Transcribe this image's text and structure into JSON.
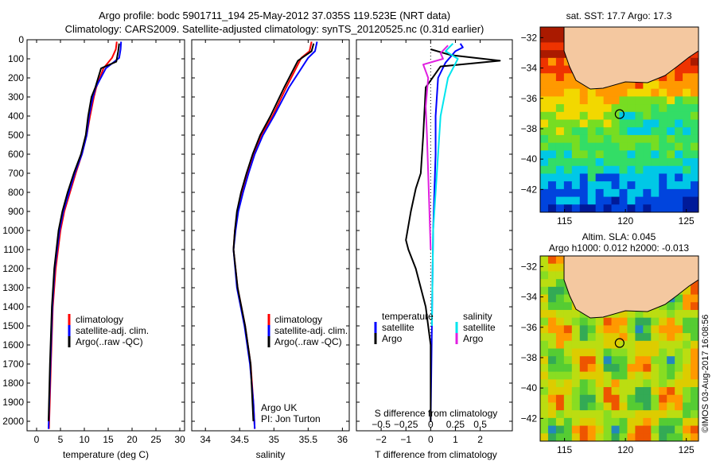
{
  "header": {
    "title_line1": "Argo profile: bodc 5901711_194 25-May-2012 37.035S 119.523E (NRT data)",
    "title_line2": "Climatology: CARS2009. Satellite-adjusted climatology: synTS_20120525.nc (0.31d earlier)"
  },
  "credit": "©IMOS 03-Aug-2017 16:08:56",
  "chart_data": [
    {
      "id": "temperature",
      "type": "line",
      "xlabel": "temperature (deg C)",
      "ylabel": "",
      "xlim": [
        -2,
        31
      ],
      "ylim": [
        2050,
        0
      ],
      "xticks": [
        0,
        5,
        10,
        15,
        20,
        25,
        30
      ],
      "yticks": [
        0,
        100,
        200,
        300,
        400,
        500,
        600,
        700,
        800,
        900,
        1000,
        1100,
        1200,
        1300,
        1400,
        1500,
        1600,
        1700,
        1800,
        1900,
        2000
      ],
      "legend": [
        "climatology",
        "satellite-adj. clim.",
        "Argo(..raw -QC)"
      ],
      "legend_colors": [
        "#ff0000",
        "#0000ff",
        "#000000"
      ],
      "series": [
        {
          "name": "climatology",
          "color": "#ff0000",
          "x": [
            16.8,
            16.6,
            15.8,
            14.0,
            12.5,
            12.0,
            11.2,
            10.5,
            9.5,
            8.2,
            7.0,
            5.8,
            5.0,
            4.0,
            3.4,
            3.0,
            2.6
          ],
          "y": [
            10,
            50,
            95,
            150,
            250,
            300,
            400,
            500,
            600,
            700,
            800,
            900,
            1000,
            1200,
            1400,
            1700,
            2040
          ]
        },
        {
          "name": "satellite-adj. clim.",
          "color": "#0000ff",
          "x": [
            17.7,
            17.6,
            17.3,
            14.5,
            12.4,
            11.8,
            11.0,
            10.5,
            9.5,
            8.0,
            6.8,
            5.6,
            4.8,
            3.8,
            3.3,
            2.9,
            2.5
          ],
          "y": [
            10,
            50,
            95,
            150,
            250,
            300,
            400,
            500,
            600,
            700,
            800,
            900,
            1000,
            1200,
            1400,
            1700,
            2040
          ]
        },
        {
          "name": "Argo(..raw -QC)",
          "color": "#000000",
          "x": [
            17.3,
            17.1,
            16.7,
            13.5,
            12.3,
            11.5,
            10.8,
            10.3,
            9.3,
            7.8,
            6.5,
            5.4,
            4.6,
            3.7,
            3.2,
            2.8,
            2.5
          ],
          "y": [
            20,
            60,
            115,
            150,
            250,
            300,
            400,
            500,
            600,
            700,
            800,
            900,
            1000,
            1200,
            1400,
            1700,
            2000
          ]
        }
      ]
    },
    {
      "id": "salinity",
      "type": "line",
      "xlabel": "salinity",
      "ylabel": "",
      "xlim": [
        33.8,
        36.1
      ],
      "ylim": [
        2050,
        0
      ],
      "xticks": [
        34,
        34.5,
        35,
        35.5,
        36
      ],
      "yticks": [
        0,
        100,
        200,
        300,
        400,
        500,
        600,
        700,
        800,
        900,
        1000,
        1100,
        1200,
        1300,
        1400,
        1500,
        1600,
        1700,
        1800,
        1900,
        2000
      ],
      "legend": [
        "climatology",
        "satellite-adj. clim.",
        "Argo(..raw -QC)"
      ],
      "legend_colors": [
        "#ff0000",
        "#0000ff",
        "#000000"
      ],
      "annotation": [
        "Argo UK",
        "PI: Jon Turton"
      ],
      "series": [
        {
          "name": "climatology",
          "color": "#ff0000",
          "x": [
            35.55,
            35.52,
            35.4,
            35.18,
            34.98,
            34.82,
            34.71,
            34.62,
            34.54,
            34.47,
            34.43,
            34.41,
            34.47,
            34.58,
            34.66,
            34.7,
            34.72
          ],
          "y": [
            10,
            60,
            95,
            250,
            400,
            500,
            600,
            700,
            800,
            900,
            1000,
            1100,
            1300,
            1500,
            1700,
            1900,
            2040
          ]
        },
        {
          "name": "satellite-adj. clim.",
          "color": "#0000ff",
          "x": [
            35.63,
            35.6,
            35.5,
            35.22,
            35.0,
            34.84,
            34.72,
            34.63,
            34.55,
            34.48,
            34.44,
            34.41,
            34.46,
            34.57,
            34.65,
            34.7,
            34.72
          ],
          "y": [
            10,
            60,
            95,
            250,
            400,
            500,
            600,
            700,
            800,
            900,
            1000,
            1100,
            1300,
            1500,
            1700,
            1900,
            2040
          ]
        },
        {
          "name": "Argo(..raw -QC)",
          "color": "#000000",
          "x": [
            35.58,
            35.55,
            35.35,
            35.15,
            34.95,
            34.8,
            34.69,
            34.6,
            34.52,
            34.46,
            34.43,
            34.41,
            34.47,
            34.58,
            34.66,
            34.7
          ],
          "y": [
            20,
            60,
            110,
            250,
            400,
            500,
            600,
            700,
            800,
            900,
            1000,
            1100,
            1300,
            1500,
            1700,
            2000
          ]
        }
      ]
    },
    {
      "id": "difference",
      "type": "line",
      "xlabel": "T difference from climatology",
      "xlabel_top": "S difference from climatology",
      "xlim": [
        -3,
        3.3
      ],
      "ylim": [
        2050,
        0
      ],
      "xticks": [
        -2,
        -1,
        0,
        1,
        2
      ],
      "xticks_top": [
        -0.5,
        -0.25,
        0,
        0.25,
        0.5
      ],
      "yticks": [
        0,
        100,
        200,
        300,
        400,
        500,
        600,
        700,
        800,
        900,
        1000,
        1100,
        1200,
        1300,
        1400,
        1500,
        1600,
        1700,
        1800,
        1900,
        2000
      ],
      "legend_temperature_title": "temperature",
      "legend_salinity_title": "salinity",
      "legend_temperature": [
        "satellite",
        "Argo"
      ],
      "legend_salinity": [
        "satellite",
        "Argo"
      ],
      "series": [
        {
          "name": "temperature satellite",
          "color": "#0000ff",
          "x": [
            1.2,
            1.3,
            1.0,
            0.6,
            0.3,
            0.2,
            0.2,
            0.1,
            0.05,
            0.0
          ],
          "y": [
            20,
            40,
            60,
            120,
            200,
            400,
            600,
            1000,
            1500,
            2000
          ]
        },
        {
          "name": "temperature Argo",
          "color": "#000000",
          "x": [
            0.0,
            0.8,
            2.8,
            0.4,
            -0.2,
            -0.3,
            -0.4,
            -0.6,
            -0.8,
            -1.0,
            -0.9,
            -0.6,
            -0.4,
            -0.2,
            0.0,
            0.0
          ],
          "y": [
            50,
            80,
            110,
            140,
            250,
            500,
            700,
            780,
            900,
            1050,
            1100,
            1200,
            1300,
            1400,
            1600,
            2000
          ]
        },
        {
          "name": "salinity satellite",
          "color": "#00e5ee",
          "x": [
            0.9,
            0.6,
            1.1,
            0.7,
            0.4,
            0.3,
            0.1,
            0.05
          ],
          "y": [
            20,
            60,
            100,
            200,
            400,
            600,
            1000,
            1500
          ]
        },
        {
          "name": "salinity Argo",
          "color": "#e020e0",
          "x": [
            0.7,
            0.4,
            0.5,
            -0.3,
            -0.1,
            -0.2,
            -0.15,
            -0.1,
            -0.05,
            0.0
          ],
          "y": [
            30,
            70,
            100,
            130,
            200,
            350,
            500,
            700,
            900,
            1100
          ]
        }
      ]
    }
  ],
  "maps": [
    {
      "id": "sst-map",
      "title": "sat. SST: 17.7 Argo: 17.3",
      "title_line2": "",
      "xlim": [
        113,
        126
      ],
      "ylim": [
        -43.5,
        -31.3
      ],
      "xticks": [
        115,
        120,
        125
      ],
      "yticks": [
        -32,
        -34,
        -36,
        -38,
        -40,
        -42
      ],
      "marker": {
        "lon": 119.523,
        "lat": -37.035
      },
      "palette": [
        "#001a99",
        "#0044dd",
        "#00c8e6",
        "#33dd66",
        "#77dd22",
        "#f2d800",
        "#ff9900",
        "#ee3300",
        "#aa1a00"
      ],
      "land_color": "#f4c8a0"
    },
    {
      "id": "sla-map",
      "title": "Altim. SLA: 0.045",
      "title_line2": "Argo h1000: 0.012 h2000: -0.013",
      "xlim": [
        113,
        126
      ],
      "ylim": [
        -43.5,
        -31.3
      ],
      "xticks": [
        115,
        120,
        125
      ],
      "yticks": [
        -32,
        -34,
        -36,
        -38,
        -40,
        -42
      ],
      "marker": {
        "lon": 119.523,
        "lat": -37.035
      },
      "palette": [
        "#2288bb",
        "#33aa55",
        "#55cc33",
        "#88dd22",
        "#bbdd11",
        "#ddcc00",
        "#ff9900",
        "#ee5500"
      ],
      "land_color": "#f4c8a0"
    }
  ]
}
